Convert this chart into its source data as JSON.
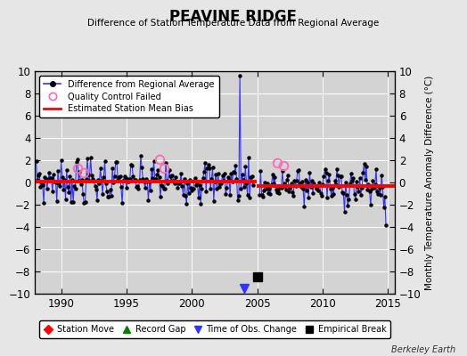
{
  "title": "PEAVINE RIDGE",
  "subtitle": "Difference of Station Temperature Data from Regional Average",
  "ylabel": "Monthly Temperature Anomaly Difference (°C)",
  "xlim": [
    1988.0,
    2015.5
  ],
  "ylim": [
    -10,
    10
  ],
  "yticks": [
    -10,
    -8,
    -6,
    -4,
    -2,
    0,
    2,
    4,
    6,
    8,
    10
  ],
  "xticks": [
    1990,
    1995,
    2000,
    2005,
    2010,
    2015
  ],
  "bg_color": "#e6e6e6",
  "plot_bg_color": "#d3d3d3",
  "grid_color": "#ffffff",
  "line_color": "#3333ff",
  "marker_color": "#000000",
  "bias_color": "#ff0000",
  "qc_color": "#ff69b4",
  "bias_before": 0.12,
  "bias_after": -0.28,
  "bias_break_year": 2004.92,
  "time_obs_year": 2004.0,
  "time_obs_y": -9.5,
  "empirical_break_year": 2005.0,
  "empirical_break_y": -8.5,
  "berkeley_earth_text": "Berkeley Earth",
  "spike_year": 2003.7,
  "spike_val": 9.6,
  "qc_years": [
    1991.25,
    1991.75,
    1997.5,
    1997.83,
    2006.5,
    2007.0
  ],
  "qc_vals": [
    1.3,
    0.9,
    2.1,
    1.3,
    1.8,
    1.5
  ],
  "seed": 7
}
